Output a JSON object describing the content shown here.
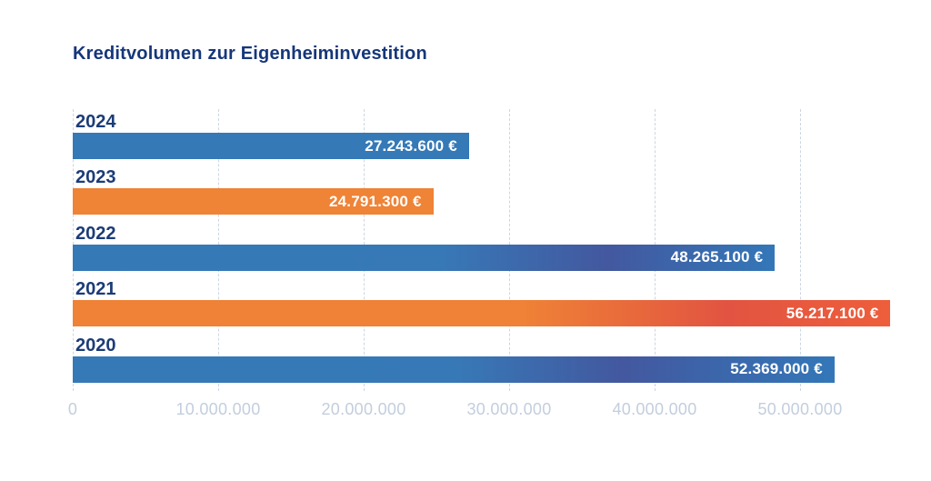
{
  "title": "Kreditvolumen zur Eigenheiminvestition",
  "chart_data": {
    "type": "bar",
    "orientation": "horizontal",
    "title": "Kreditvolumen zur Eigenheiminvestition",
    "categories": [
      "2024",
      "2023",
      "2022",
      "2021",
      "2020"
    ],
    "values": [
      27243600,
      24791300,
      48265100,
      56217100,
      52369000
    ],
    "value_labels": [
      "27.243.600 €",
      "24.791.300 €",
      "48.265.100 €",
      "56.217.100 €",
      "52.369.000 €"
    ],
    "x_ticks": [
      {
        "value": 0,
        "label": "0"
      },
      {
        "value": 10000000,
        "label": "10.000.000"
      },
      {
        "value": 20000000,
        "label": "20.000.000"
      },
      {
        "value": 30000000,
        "label": "30.000.000"
      },
      {
        "value": 40000000,
        "label": "40.000.000"
      },
      {
        "value": 50000000,
        "label": "50.000.000"
      }
    ],
    "xlim": [
      0,
      59000000
    ],
    "grid": "vertical-dashed",
    "legend": "none",
    "bar_fills": [
      [
        "#3579b7"
      ],
      [
        "#ef8336"
      ],
      [
        "#3579b7 0%",
        "#3779b7 52%",
        "#43589f 76%",
        "#3377b8 100%"
      ],
      [
        "#ef8236 0%",
        "#ef8236 55%",
        "#e25441 80%",
        "#ee5e3b 100%"
      ],
      [
        "#3579b7 0%",
        "#3779b7 50%",
        "#43589f 72%",
        "#3377b8 100%"
      ]
    ]
  },
  "colors": {
    "background": "#ffffff",
    "title_text": "#16377a",
    "category_text": "#1c3c77",
    "value_text": "#ffffff",
    "axis_text": "#c3cedd",
    "gridline": "#ccd6e3",
    "bar_blue": "#3579b7",
    "bar_orange": "#ef8336",
    "bar_blue_dark": "#43589f",
    "bar_red_orange": "#e25441"
  }
}
